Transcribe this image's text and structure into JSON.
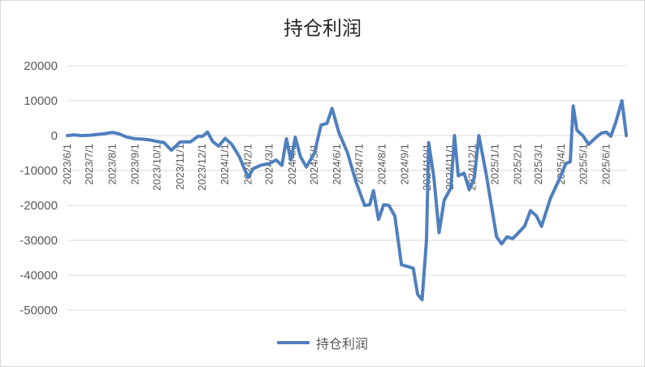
{
  "chart_data": {
    "type": "line",
    "title": "持仓利润",
    "xlabel": "",
    "ylabel": "",
    "ylim": [
      -50000,
      20000
    ],
    "yticks": [
      20000,
      10000,
      0,
      -10000,
      -20000,
      -30000,
      -40000,
      -50000
    ],
    "ytick_labels": [
      "20000",
      "10000",
      "0",
      "-10000",
      "-20000",
      "-30000",
      "-40000",
      "-50000"
    ],
    "xticks": [
      "2023/6/1",
      "2023/7/1",
      "2023/8/1",
      "2023/9/1",
      "2023/10/1",
      "2023/11/1",
      "2023/12/1",
      "2024/1/1",
      "2024/2/1",
      "2024/3/1",
      "2024/4/1",
      "2024/5/1",
      "2024/6/1",
      "2024/7/1",
      "2024/8/1",
      "2024/9/1",
      "2024/10/1",
      "2024/11/1",
      "2024/12/1",
      "2025/1/1",
      "2025/2/1",
      "2025/3/1",
      "2025/4/1",
      "2025/5/1",
      "2025/6/1"
    ],
    "grid": true,
    "legend_position": "bottom",
    "series": [
      {
        "name": "持仓利润",
        "color": "#4f7fbf",
        "points": [
          [
            "2023/6/1",
            0
          ],
          [
            "2023/6/10",
            200
          ],
          [
            "2023/6/20",
            0
          ],
          [
            "2023/7/1",
            100
          ],
          [
            "2023/7/10",
            300
          ],
          [
            "2023/7/20",
            500
          ],
          [
            "2023/8/1",
            900
          ],
          [
            "2023/8/10",
            500
          ],
          [
            "2023/8/20",
            -400
          ],
          [
            "2023/9/1",
            -900
          ],
          [
            "2023/9/10",
            -1000
          ],
          [
            "2023/9/20",
            -1200
          ],
          [
            "2023/10/1",
            -1700
          ],
          [
            "2023/10/10",
            -2000
          ],
          [
            "2023/10/20",
            -4200
          ],
          [
            "2023/11/1",
            -1800
          ],
          [
            "2023/11/15",
            -1800
          ],
          [
            "2023/11/25",
            -200
          ],
          [
            "2023/12/1",
            -200
          ],
          [
            "2023/12/8",
            1000
          ],
          [
            "2023/12/15",
            -1700
          ],
          [
            "2023/12/23",
            -3000
          ],
          [
            "2024/1/1",
            -800
          ],
          [
            "2024/1/10",
            -2500
          ],
          [
            "2024/1/20",
            -6000
          ],
          [
            "2024/2/1",
            -12000
          ],
          [
            "2024/2/8",
            -9500
          ],
          [
            "2024/2/18",
            -8500
          ],
          [
            "2024/3/1",
            -8000
          ],
          [
            "2024/3/10",
            -7000
          ],
          [
            "2024/3/18",
            -8500
          ],
          [
            "2024/3/24",
            -900
          ],
          [
            "2024/3/30",
            -7000
          ],
          [
            "2024/4/5",
            -500
          ],
          [
            "2024/4/12",
            -6000
          ],
          [
            "2024/4/20",
            -9000
          ],
          [
            "2024/5/1",
            -5000
          ],
          [
            "2024/5/10",
            3000
          ],
          [
            "2024/5/18",
            3500
          ],
          [
            "2024/5/25",
            7800
          ],
          [
            "2024/6/3",
            1000
          ],
          [
            "2024/6/15",
            -5000
          ],
          [
            "2024/6/26",
            -13000
          ],
          [
            "2024/7/8",
            -20000
          ],
          [
            "2024/7/15",
            -19800
          ],
          [
            "2024/7/20",
            -15800
          ],
          [
            "2024/7/27",
            -24000
          ],
          [
            "2024/8/3",
            -19800
          ],
          [
            "2024/8/10",
            -20000
          ],
          [
            "2024/8/18",
            -23000
          ],
          [
            "2024/8/27",
            -37000
          ],
          [
            "2024/9/5",
            -37500
          ],
          [
            "2024/9/12",
            -38000
          ],
          [
            "2024/9/18",
            -45500
          ],
          [
            "2024/9/24",
            -47000
          ],
          [
            "2024/9/30",
            -30000
          ],
          [
            "2024/10/3",
            -2000
          ],
          [
            "2024/10/10",
            -12000
          ],
          [
            "2024/10/17",
            -27800
          ],
          [
            "2024/10/24",
            -18500
          ],
          [
            "2024/11/2",
            -15000
          ],
          [
            "2024/11/7",
            0
          ],
          [
            "2024/11/12",
            -11500
          ],
          [
            "2024/11/20",
            -10800
          ],
          [
            "2024/11/27",
            -15500
          ],
          [
            "2024/12/4",
            -12000
          ],
          [
            "2024/12/10",
            0
          ],
          [
            "2024/12/20",
            -11000
          ],
          [
            "2025/1/3",
            -29000
          ],
          [
            "2025/1/10",
            -31000
          ],
          [
            "2025/1/17",
            -29000
          ],
          [
            "2025/1/25",
            -29500
          ],
          [
            "2025/2/10",
            -26000
          ],
          [
            "2025/2/18",
            -21500
          ],
          [
            "2025/2/26",
            -23000
          ],
          [
            "2025/3/5",
            -26000
          ],
          [
            "2025/3/17",
            -18000
          ],
          [
            "2025/3/28",
            -13000
          ],
          [
            "2025/4/7",
            -8000
          ],
          [
            "2025/4/13",
            -7500
          ],
          [
            "2025/4/17",
            8500
          ],
          [
            "2025/4/22",
            1500
          ],
          [
            "2025/4/30",
            0
          ],
          [
            "2025/5/8",
            -2500
          ],
          [
            "2025/5/18",
            -500
          ],
          [
            "2025/5/25",
            700
          ],
          [
            "2025/6/1",
            1000
          ],
          [
            "2025/6/7",
            -200
          ],
          [
            "2025/6/14",
            4000
          ],
          [
            "2025/6/22",
            10000
          ],
          [
            "2025/6/28",
            0
          ]
        ]
      }
    ]
  }
}
